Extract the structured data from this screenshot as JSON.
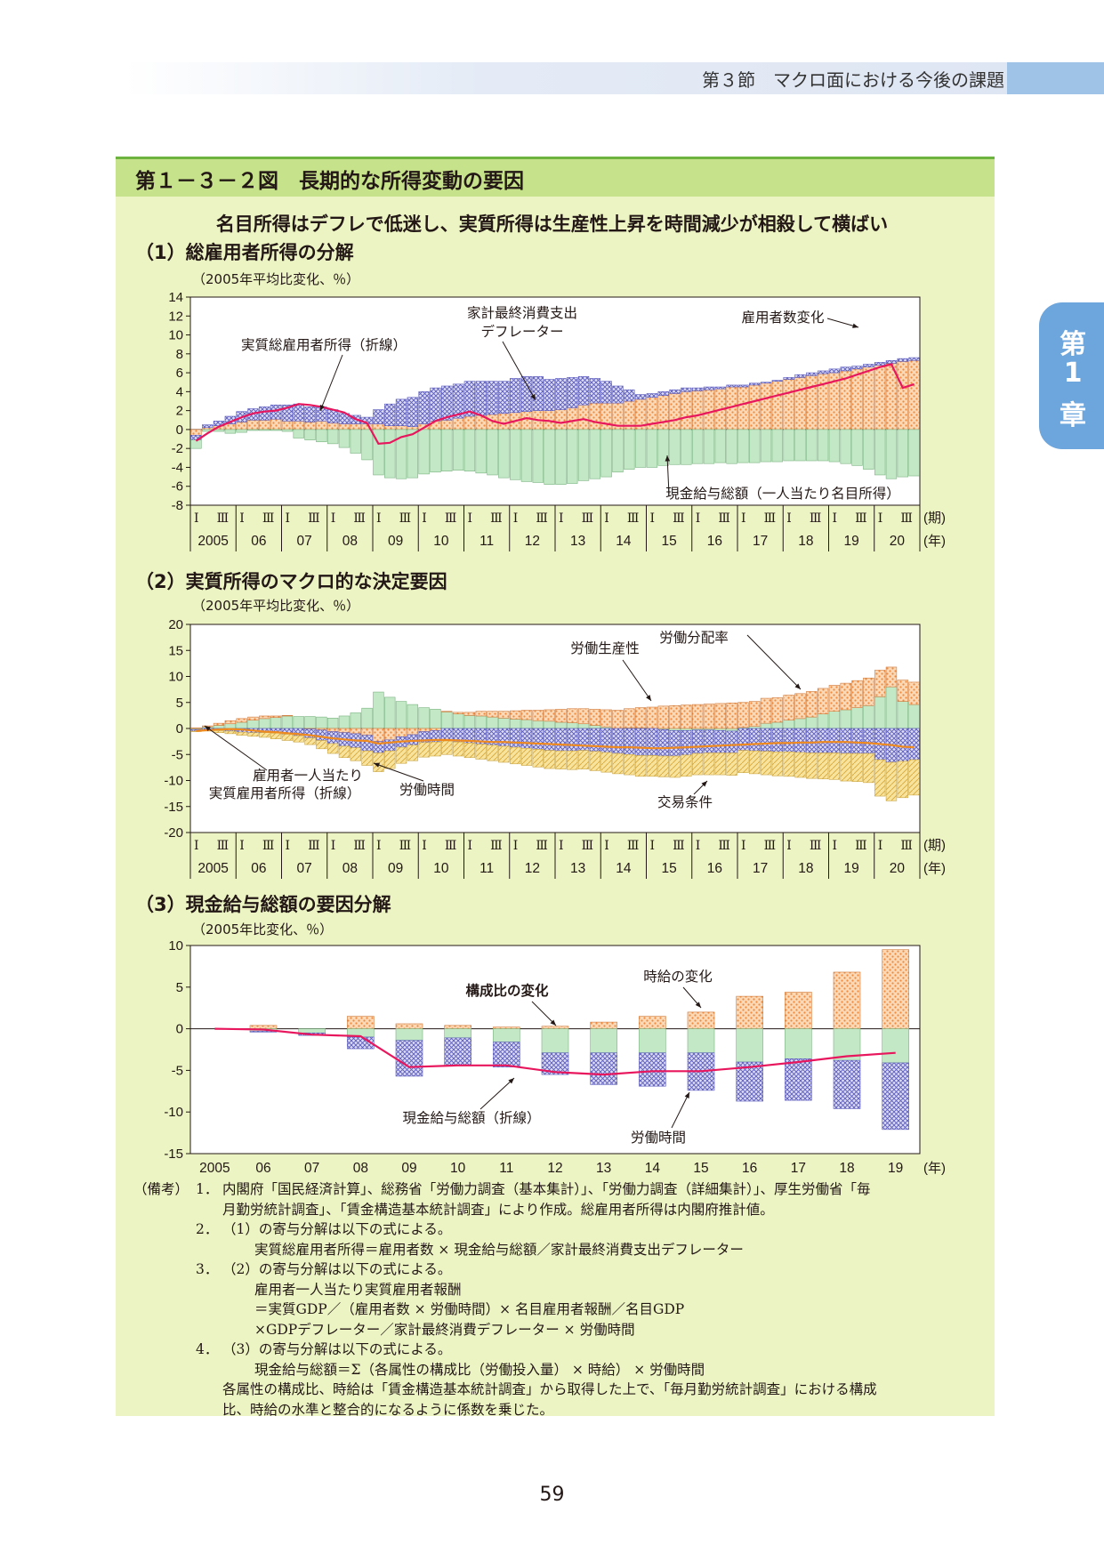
{
  "header": {
    "section": "第３節　マクロ面における今後の課題",
    "chapter_tab": [
      "第",
      "1",
      "章"
    ]
  },
  "figure": {
    "title": "第１－３－２図　長期的な所得変動の要因",
    "subtitle": "名目所得はデフレで低迷し、実質所得は生産性上昇を時間減少が相殺して横ばい"
  },
  "colors": {
    "orange": "#f19149",
    "blue": "#6b6bc4",
    "green": "#bfe6c2",
    "yellow": "#f5dc8a",
    "red": "#e8175d",
    "line_orange": "#ef8a1e"
  },
  "sections": [
    {
      "label": "（1）総雇用者所得の分解",
      "unit": "（2005年平均比変化、％）"
    },
    {
      "label": "（2）実質所得のマクロ的な決定要因",
      "unit": "（2005年平均比変化、％）"
    },
    {
      "label": "（3）現金給与総額の要因分解",
      "unit": "（2005年比変化、％）"
    }
  ],
  "period_axis": {
    "halves": [
      "Ⅰ",
      "Ⅲ"
    ],
    "years": [
      "2005",
      "06",
      "07",
      "08",
      "09",
      "10",
      "11",
      "12",
      "13",
      "14",
      "15",
      "16",
      "17",
      "18",
      "19",
      "20"
    ],
    "period_unit": "(期)",
    "year_unit": "(年)"
  },
  "chart_data": [
    {
      "type": "bar",
      "stacked": true,
      "line_overlay": true,
      "id": "chart1",
      "x": "quarterly 2005Q1–2020Q4",
      "ylim": [
        -8,
        14
      ],
      "yticks": [
        14,
        12,
        10,
        8,
        6,
        4,
        2,
        0,
        -2,
        -4,
        -6,
        -8
      ],
      "annotations": [
        "家計最終消費支出",
        "デフレーター",
        "雇用者数変化",
        "実質総雇用者所得（折線）",
        "現金給与総額（一人当たり名目所得）"
      ],
      "series": [
        {
          "name": "雇用者数変化",
          "color": "orange",
          "values": [
            -0.6,
            0.2,
            0.4,
            0.6,
            0.8,
            1.0,
            1.0,
            1.1,
            0.9,
            0.9,
            0.8,
            0.9,
            0.7,
            0.6,
            0.6,
            0.6,
            0.6,
            0.4,
            0.4,
            0.3,
            0.6,
            0.9,
            1.0,
            1.2,
            1.4,
            1.5,
            1.6,
            1.7,
            1.8,
            1.9,
            2.0,
            2.0,
            2.1,
            2.3,
            2.6,
            2.8,
            2.8,
            2.8,
            3.0,
            3.2,
            3.4,
            3.6,
            3.8,
            4.0,
            4.1,
            4.2,
            4.3,
            4.5,
            4.5,
            4.7,
            4.9,
            5.1,
            5.3,
            5.5,
            5.7,
            5.9,
            6.0,
            6.2,
            6.4,
            6.6,
            6.8,
            7.0,
            7.2,
            7.3
          ]
        },
        {
          "name": "家計最終消費支出デフレーター",
          "color": "blue",
          "values": [
            -0.5,
            0.3,
            0.5,
            0.8,
            1.1,
            1.2,
            1.4,
            1.5,
            1.7,
            1.8,
            1.6,
            1.5,
            1.4,
            1.1,
            0.9,
            0.7,
            1.5,
            2.3,
            2.8,
            3.1,
            3.4,
            3.5,
            3.6,
            3.6,
            3.7,
            3.6,
            3.5,
            3.4,
            3.6,
            3.7,
            3.6,
            3.3,
            3.3,
            3.2,
            3.0,
            2.6,
            2.3,
            1.8,
            1.2,
            0.5,
            0.4,
            0.4,
            0.4,
            0.4,
            0.3,
            0.3,
            0.2,
            0.2,
            0.2,
            0.2,
            0.1,
            0.1,
            0.2,
            0.3,
            0.3,
            0.3,
            0.4,
            0.4,
            0.3,
            0.3,
            0.3,
            0.3,
            0.3,
            0.3
          ]
        },
        {
          "name": "現金給与総額（一人当たり名目所得）",
          "color": "green",
          "values": [
            -0.9,
            -0.2,
            -0.2,
            -0.4,
            -0.3,
            -0.1,
            -0.1,
            -0.1,
            -0.2,
            -0.9,
            -1.1,
            -1.3,
            -1.5,
            -1.9,
            -2.5,
            -3.2,
            -4.8,
            -5.1,
            -5.2,
            -5.1,
            -4.7,
            -4.5,
            -4.4,
            -4.3,
            -4.4,
            -4.6,
            -4.8,
            -5.1,
            -5.3,
            -5.5,
            -5.6,
            -5.8,
            -5.8,
            -5.7,
            -5.4,
            -5.2,
            -5.0,
            -4.5,
            -4.2,
            -4.0,
            -4.0,
            -3.8,
            -3.7,
            -3.7,
            -3.6,
            -3.6,
            -3.5,
            -3.6,
            -3.5,
            -3.5,
            -3.4,
            -3.4,
            -3.3,
            -3.3,
            -3.3,
            -3.3,
            -3.4,
            -3.6,
            -3.8,
            -4.2,
            -4.8,
            -5.2,
            -5.0,
            -4.9
          ]
        },
        {
          "name": "実質総雇用者所得（折線）",
          "color": "red",
          "line": true,
          "values": [
            -1.2,
            -0.4,
            0.3,
            0.8,
            1.3,
            1.7,
            1.9,
            2.0,
            2.3,
            2.7,
            2.6,
            2.4,
            2.1,
            1.8,
            1.1,
            0.7,
            -1.5,
            -1.4,
            -0.8,
            -0.5,
            0.2,
            0.9,
            1.3,
            1.6,
            1.9,
            1.5,
            0.9,
            0.6,
            0.9,
            1.2,
            1.0,
            0.9,
            0.7,
            0.9,
            1.1,
            0.8,
            0.6,
            0.4,
            0.4,
            0.4,
            0.6,
            0.8,
            1.0,
            1.3,
            1.5,
            1.8,
            2.1,
            2.4,
            2.7,
            3.0,
            3.3,
            3.6,
            3.9,
            4.2,
            4.5,
            4.8,
            5.1,
            5.4,
            5.8,
            6.2,
            6.6,
            6.9,
            4.4,
            4.8
          ]
        }
      ]
    },
    {
      "type": "bar",
      "stacked": true,
      "line_overlay": true,
      "id": "chart2",
      "x": "quarterly 2005Q1–2020Q4",
      "ylim": [
        -20,
        20
      ],
      "yticks": [
        20,
        15,
        10,
        5,
        0,
        -5,
        -10,
        -15,
        -20
      ],
      "annotations": [
        "労働分配率",
        "労働生産性",
        "雇用者一人当たり",
        "実質雇用者所得（折線）",
        "労働時間",
        "交易条件"
      ],
      "series": [
        {
          "name": "労働分配率",
          "color": "green",
          "values": [
            -0.2,
            0.3,
            0.6,
            0.9,
            1.2,
            1.6,
            1.9,
            2.1,
            2.4,
            2.3,
            2.3,
            2.2,
            2.0,
            2.4,
            3.0,
            3.9,
            7.0,
            6.0,
            5.2,
            4.6,
            4.0,
            3.7,
            3.2,
            2.8,
            2.5,
            2.4,
            2.2,
            2.0,
            1.8,
            1.7,
            1.5,
            1.4,
            1.2,
            1.1,
            0.9,
            0.6,
            0.3,
            0.0,
            0.1,
            0.1,
            0.0,
            -0.2,
            -0.4,
            -0.4,
            -0.3,
            -0.3,
            -0.4,
            -0.5,
            0.2,
            0.4,
            1.0,
            1.2,
            1.6,
            1.9,
            2.2,
            2.8,
            3.3,
            3.6,
            4.0,
            4.4,
            6.1,
            8.0,
            5.2,
            4.6
          ]
        },
        {
          "name": "労働生産性",
          "color": "orange",
          "values": [
            0.1,
            0.2,
            0.4,
            0.6,
            0.7,
            0.6,
            0.5,
            0.3,
            0.1,
            0.0,
            -0.1,
            -0.3,
            -0.6,
            -0.8,
            -1.0,
            -1.3,
            -2.5,
            -2.2,
            -1.6,
            -1.2,
            -0.6,
            -0.4,
            0.1,
            0.3,
            0.6,
            0.9,
            1.1,
            1.3,
            1.6,
            1.8,
            2.0,
            2.2,
            2.5,
            2.7,
            2.9,
            3.1,
            3.3,
            3.5,
            3.7,
            3.9,
            4.1,
            4.3,
            4.4,
            4.5,
            4.6,
            4.7,
            4.8,
            4.9,
            4.8,
            4.8,
            4.8,
            4.7,
            4.8,
            4.8,
            4.9,
            4.9,
            5.0,
            5.1,
            5.2,
            5.3,
            5.1,
            3.8,
            4.1,
            4.3
          ]
        },
        {
          "name": "交易条件",
          "color": "blue",
          "values": [
            -0.3,
            -0.3,
            -0.4,
            -0.5,
            -0.7,
            -0.8,
            -0.8,
            -0.9,
            -1.1,
            -1.4,
            -1.7,
            -2.0,
            -2.3,
            -2.6,
            -2.7,
            -3.0,
            -2.2,
            -2.1,
            -2.0,
            -2.0,
            -2.1,
            -2.2,
            -2.4,
            -2.6,
            -2.8,
            -3.0,
            -3.2,
            -3.4,
            -3.6,
            -3.8,
            -4.0,
            -4.2,
            -4.3,
            -4.3,
            -4.2,
            -4.4,
            -4.6,
            -4.8,
            -5.0,
            -5.2,
            -5.2,
            -5.1,
            -4.9,
            -4.7,
            -4.5,
            -4.4,
            -4.3,
            -4.2,
            -4.2,
            -4.3,
            -4.4,
            -4.5,
            -4.5,
            -4.6,
            -4.7,
            -4.7,
            -4.7,
            -4.8,
            -4.8,
            -4.8,
            -6.0,
            -6.5,
            -6.3,
            -6.0
          ]
        },
        {
          "name": "労働時間",
          "color": "yellow",
          "values": [
            -0.1,
            -0.2,
            -0.4,
            -0.5,
            -0.6,
            -0.7,
            -0.9,
            -1.1,
            -1.2,
            -1.2,
            -1.3,
            -1.6,
            -1.9,
            -2.2,
            -2.5,
            -2.8,
            -3.6,
            -3.4,
            -3.1,
            -3.0,
            -2.8,
            -2.7,
            -2.6,
            -2.7,
            -2.8,
            -2.9,
            -3.0,
            -3.1,
            -3.2,
            -3.3,
            -3.4,
            -3.5,
            -3.5,
            -3.6,
            -3.6,
            -3.7,
            -3.8,
            -3.9,
            -3.9,
            -4.0,
            -4.0,
            -4.0,
            -4.1,
            -4.1,
            -4.1,
            -4.2,
            -4.2,
            -4.3,
            -4.3,
            -4.4,
            -4.5,
            -4.6,
            -4.7,
            -4.8,
            -4.9,
            -5.0,
            -5.1,
            -5.3,
            -5.4,
            -5.6,
            -7.0,
            -7.4,
            -7.0,
            -6.8
          ]
        },
        {
          "name": "雇用者一人当たり実質雇用者所得（折線）",
          "color": "line_orange",
          "line": true,
          "values": [
            -0.5,
            -0.3,
            -0.2,
            -0.1,
            -0.2,
            -0.4,
            -0.6,
            -0.7,
            -0.9,
            -1.1,
            -1.3,
            -1.6,
            -1.9,
            -2.1,
            -2.3,
            -2.4,
            -2.9,
            -2.7,
            -2.5,
            -2.4,
            -2.3,
            -2.2,
            -2.2,
            -2.3,
            -2.4,
            -2.5,
            -2.6,
            -2.6,
            -2.7,
            -2.8,
            -2.9,
            -3.0,
            -3.1,
            -3.2,
            -3.3,
            -3.4,
            -3.5,
            -3.6,
            -3.6,
            -3.7,
            -3.8,
            -3.8,
            -3.7,
            -3.6,
            -3.5,
            -3.4,
            -3.3,
            -3.2,
            -3.1,
            -3.0,
            -2.9,
            -2.8,
            -2.8,
            -2.7,
            -2.7,
            -2.6,
            -2.6,
            -2.6,
            -2.7,
            -2.8,
            -3.0,
            -3.2,
            -3.5,
            -3.6
          ]
        }
      ]
    },
    {
      "type": "bar",
      "stacked": true,
      "line_overlay": true,
      "id": "chart3",
      "categories": [
        "2005",
        "06",
        "07",
        "08",
        "09",
        "10",
        "11",
        "12",
        "13",
        "14",
        "15",
        "16",
        "17",
        "18",
        "19"
      ],
      "x_unit": "(年)",
      "ylim": [
        -15,
        10
      ],
      "yticks": [
        10,
        5,
        0,
        -5,
        -10,
        -15
      ],
      "annotations": [
        "時給の変化",
        "構成比の変化",
        "現金給与総額（折線）",
        "労働時間"
      ],
      "series": [
        {
          "name": "時給の変化",
          "color": "orange",
          "values": [
            0,
            0.4,
            0,
            1.5,
            0.6,
            0.4,
            0.2,
            0.3,
            0.8,
            1.5,
            2.0,
            3.9,
            4.4,
            6.8,
            9.5
          ]
        },
        {
          "name": "構成比の変化",
          "color": "green",
          "values": [
            0,
            -0.3,
            -0.5,
            -1.0,
            -1.4,
            -1.1,
            -1.6,
            -2.9,
            -2.9,
            -2.9,
            -2.9,
            -4.0,
            -3.6,
            -3.8,
            -4.1
          ]
        },
        {
          "name": "労働時間",
          "color": "blue",
          "values": [
            0,
            -0.1,
            -0.3,
            -1.4,
            -4.3,
            -3.3,
            -3.0,
            -2.6,
            -3.8,
            -4.0,
            -4.5,
            -4.7,
            -5.0,
            -5.8,
            -8.0
          ]
        },
        {
          "name": "現金給与総額（折線）",
          "color": "red",
          "line": true,
          "values": [
            0,
            -0.1,
            -0.7,
            -0.9,
            -4.6,
            -4.4,
            -4.4,
            -5.2,
            -5.5,
            -5.1,
            -5.1,
            -4.6,
            -4.0,
            -3.3,
            -2.9
          ]
        }
      ]
    }
  ],
  "notes": {
    "label": "（備考）",
    "items": [
      {
        "num": "1．",
        "lines": [
          "内閣府「国民経済計算」、総務省「労働力調査（基本集計）」、「労働力調査（詳細集計）」、厚生労働省「毎",
          "月勤労統計調査」、「賃金構造基本統計調査」により作成。総雇用者所得は内閣府推計値。"
        ]
      },
      {
        "num": "2．",
        "lines": [
          "（1）の寄与分解は以下の式による。"
        ],
        "sub": [
          "実質総雇用者所得＝雇用者数 × 現金給与総額／家計最終消費支出デフレーター"
        ]
      },
      {
        "num": "3．",
        "lines": [
          "（2）の寄与分解は以下の式による。"
        ],
        "sub": [
          "雇用者一人当たり実質雇用者報酬",
          "＝実質GDP／（雇用者数 × 労働時間）× 名目雇用者報酬／名目GDP",
          "×GDPデフレーター／家計最終消費デフレーター × 労働時間"
        ]
      },
      {
        "num": "4．",
        "lines": [
          "（3）の寄与分解は以下の式による。"
        ],
        "sub": [
          "現金給与総額＝Σ（各属性の構成比（労働投入量） × 時給） × 労働時間"
        ],
        "tail": [
          "各属性の構成比、時給は「賃金構造基本統計調査」から取得した上で、「毎月勤労統計調査」における構成",
          "比、時給の水準と整合的になるように係数を乗じた。"
        ]
      }
    ]
  },
  "page_number": "59"
}
